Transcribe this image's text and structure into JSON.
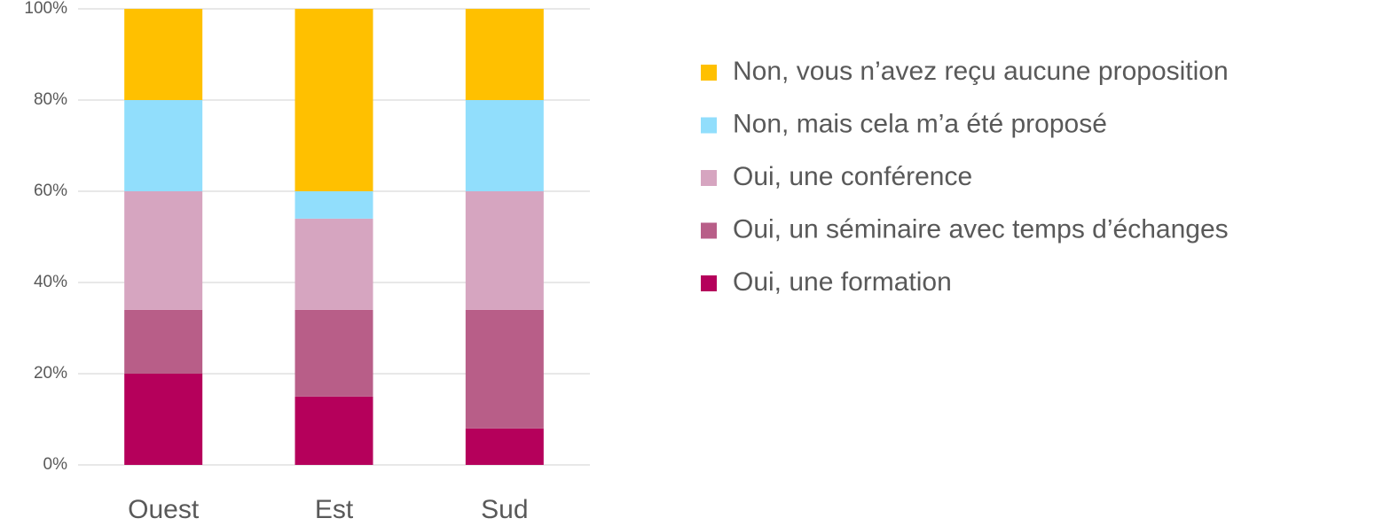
{
  "chart_data": {
    "type": "stacked_bar",
    "categories": [
      "Ouest",
      "Est",
      "Sud"
    ],
    "series": [
      {
        "name": "Oui, une formation",
        "color": "#b5005b",
        "values": [
          20,
          15,
          8
        ]
      },
      {
        "name": "Oui, un séminaire avec temps d’échanges",
        "color": "#b85e88",
        "values": [
          14,
          19,
          26
        ]
      },
      {
        "name": "Oui, une conférence",
        "color": "#d6a5c0",
        "values": [
          26,
          20,
          26
        ]
      },
      {
        "name": "Non, mais cela m’a été proposé",
        "color": "#91defc",
        "values": [
          20,
          6,
          20
        ]
      },
      {
        "name": "Non, vous n’avez reçu aucune proposition",
        "color": "#ffc000",
        "values": [
          20,
          40,
          20
        ]
      }
    ],
    "ylim": [
      0,
      100
    ],
    "yticks": [
      {
        "value": 0,
        "label": "0%"
      },
      {
        "value": 20,
        "label": "20%"
      },
      {
        "value": 40,
        "label": "40%"
      },
      {
        "value": 60,
        "label": "60%"
      },
      {
        "value": 80,
        "label": "80%"
      },
      {
        "value": 100,
        "label": "100%"
      }
    ],
    "grid": true,
    "legend": "right"
  }
}
